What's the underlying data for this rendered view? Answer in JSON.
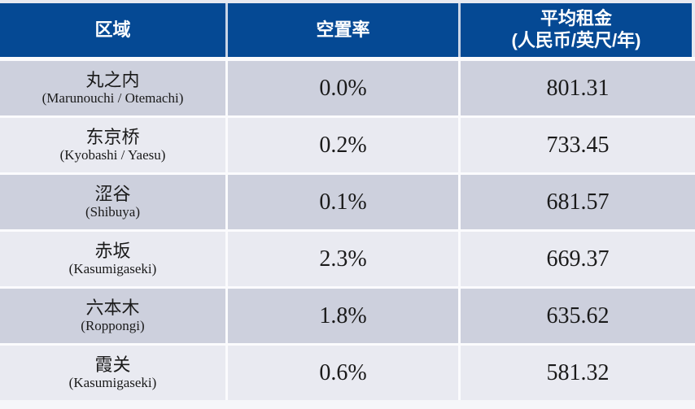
{
  "colors": {
    "header_bg": "#054994",
    "header_text": "#FFFFFF",
    "row_dark": "#CDD0DD",
    "row_light": "#E9EAF1",
    "separator": "#FBFBFD",
    "body_text": "#1A1A1A"
  },
  "table": {
    "columns": [
      {
        "label": "区域"
      },
      {
        "label": "空置率"
      },
      {
        "label": "平均租金",
        "sublabel": "(人民币/英尺/年)"
      }
    ],
    "rows": [
      {
        "district": "丸之内",
        "romanized": "(Marunouchi / Otemachi)",
        "vacancy": "0.0%",
        "rent": "801.31"
      },
      {
        "district": "东京桥",
        "romanized": "(Kyobashi / Yaesu)",
        "vacancy": "0.2%",
        "rent": "733.45"
      },
      {
        "district": "涩谷",
        "romanized": "(Shibuya)",
        "vacancy": "0.1%",
        "rent": "681.57"
      },
      {
        "district": "赤坂",
        "romanized": "(Kasumigaseki)",
        "vacancy": "2.3%",
        "rent": "669.37"
      },
      {
        "district": "六本木",
        "romanized": "(Roppongi)",
        "vacancy": "1.8%",
        "rent": "635.62"
      },
      {
        "district": "霞关",
        "romanized": "(Kasumigaseki)",
        "vacancy": "0.6%",
        "rent": "581.32"
      }
    ]
  },
  "chart_data": {
    "type": "table",
    "title": "",
    "columns": [
      "区域",
      "空置率",
      "平均租金 (人民币/英尺/年)"
    ],
    "categories": [
      "丸之内 (Marunouchi / Otemachi)",
      "东京桥 (Kyobashi / Yaesu)",
      "涩谷 (Shibuya)",
      "赤坂 (Kasumigaseki)",
      "六本木 (Roppongi)",
      "霞关 (Kasumigaseki)"
    ],
    "series": [
      {
        "name": "空置率(%)",
        "values": [
          0.0,
          0.2,
          0.1,
          2.3,
          1.8,
          0.6
        ]
      },
      {
        "name": "平均租金(人民币/英尺/年)",
        "values": [
          801.31,
          733.45,
          681.57,
          669.37,
          635.62,
          581.32
        ]
      }
    ]
  }
}
